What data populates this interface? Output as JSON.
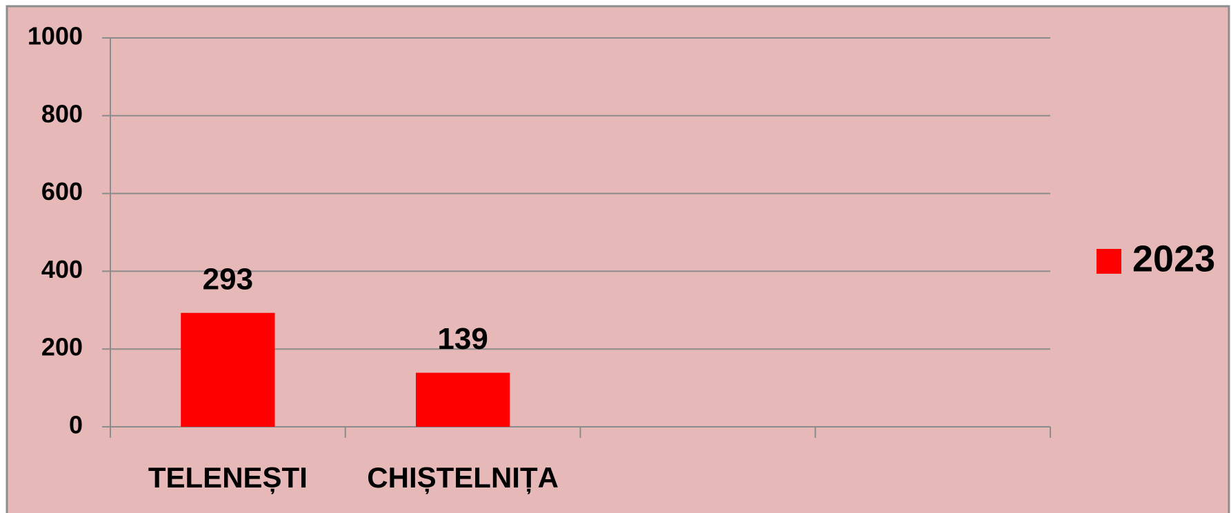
{
  "chart_data": {
    "type": "bar",
    "categories": [
      "TELENEȘTI",
      "CHIȘTELNIȚA",
      null,
      null
    ],
    "series": [
      {
        "name": "2023",
        "color": "#ff0000",
        "values": [
          293,
          139,
          null,
          null
        ]
      }
    ],
    "ylim": [
      0,
      1000
    ],
    "yticks": [
      0,
      200,
      400,
      600,
      800,
      1000
    ],
    "grid": true,
    "legend": "right"
  }
}
